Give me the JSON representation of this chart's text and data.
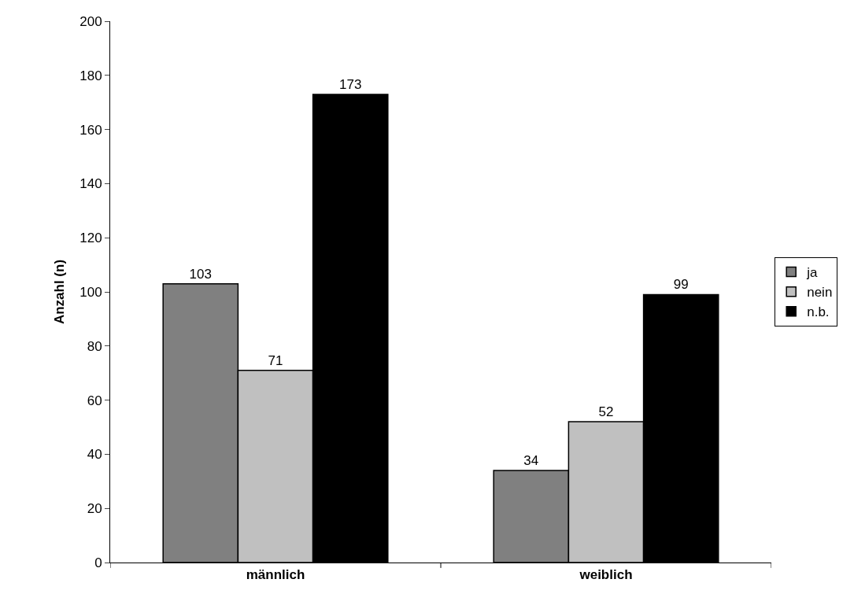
{
  "chart_data": {
    "type": "bar",
    "ylabel": "Anzahl (n)",
    "categories": [
      "männlich",
      "weiblich"
    ],
    "series": [
      {
        "name": "ja",
        "color": "#808080",
        "values": [
          103,
          34
        ]
      },
      {
        "name": "nein",
        "color": "#c0c0c0",
        "values": [
          71,
          52
        ]
      },
      {
        "name": "n.b.",
        "color": "#000000",
        "values": [
          173,
          99
        ]
      }
    ],
    "ylim": [
      0,
      200
    ],
    "yticks": [
      0,
      20,
      40,
      60,
      80,
      100,
      120,
      140,
      160,
      180,
      200
    ],
    "data_labels": true,
    "legend": "right"
  }
}
